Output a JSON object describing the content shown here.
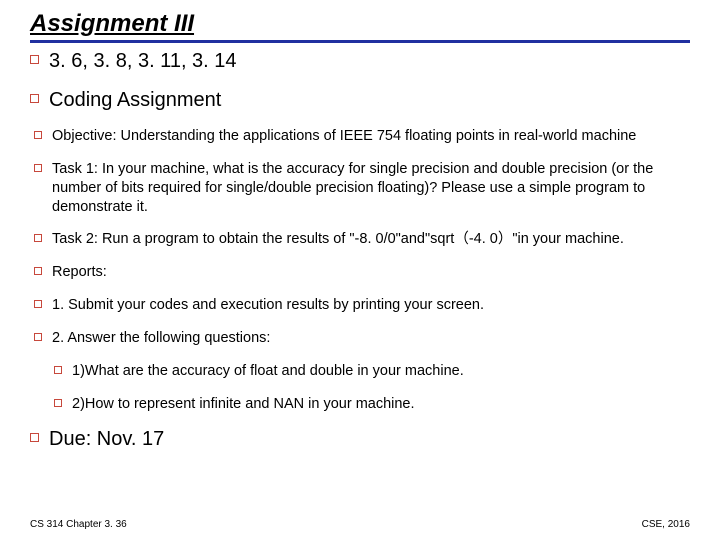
{
  "title": "Assignment III",
  "colors": {
    "rule": "#2030a0",
    "bullet_border": "#c7483c",
    "text": "#000000",
    "background": "#ffffff"
  },
  "items": {
    "exercises": "3. 6, 3. 8, 3. 11, 3. 14",
    "coding": "Coding Assignment",
    "objective": "Objective: Understanding the applications of IEEE 754 floating points in real-world machine",
    "task1": "Task 1: In your machine, what is the accuracy for single precision and double precision (or the number of bits required for single/double precision floating)? Please use a simple program to demonstrate it.",
    "task2": "Task 2: Run a program to obtain the results of \"-8. 0/0\"and\"sqrt（-4. 0）\"in your machine.",
    "reports": "Reports:",
    "step1": "1. Submit your codes and execution results by printing your screen.",
    "step2": "2. Answer the following questions:",
    "q1": "1)What are the accuracy of float and double in your machine.",
    "q2": "2)How to represent infinite and NAN in your machine.",
    "due": "Due: Nov. 17"
  },
  "footer": {
    "left": "CS 314 Chapter 3. 36",
    "right": "CSE, 2016"
  }
}
